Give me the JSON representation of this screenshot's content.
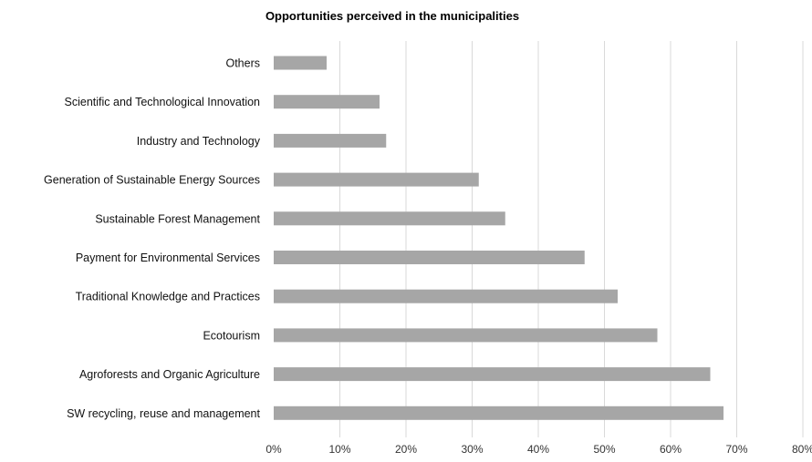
{
  "chart_data": {
    "type": "bar",
    "orientation": "horizontal",
    "title": "Opportunities perceived in the municipalities",
    "xlabel": "",
    "ylabel": "",
    "categories": [
      "Others",
      "Scientific and Technological Innovation",
      "Industry and Technology",
      "Generation of Sustainable Energy Sources",
      "Sustainable Forest Management",
      "Payment for Environmental Services",
      "Traditional Knowledge and Practices",
      "Ecotourism",
      "Agroforests and Organic Agriculture",
      "SW recycling, reuse and management"
    ],
    "values": [
      8,
      16,
      17,
      31,
      35,
      47,
      52,
      58,
      66,
      68
    ],
    "xlim": [
      0,
      80
    ],
    "xticks": [
      "0%",
      "10%",
      "20%",
      "30%",
      "40%",
      "50%",
      "60%",
      "70%",
      "80%"
    ],
    "grid": "vertical",
    "legend": "none",
    "colors": {
      "bar": "#a6a6a6",
      "grid": "#d9d9d9",
      "text": "#111111"
    }
  }
}
